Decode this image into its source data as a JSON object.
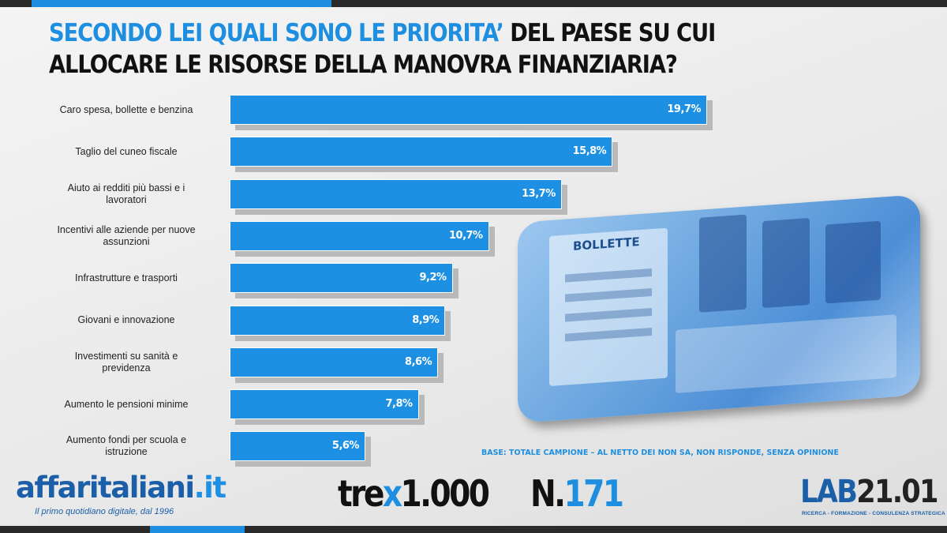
{
  "title": {
    "part_blue": "SECONDO LEI QUALI SONO LE PRIORITA’",
    "part_black": " DEL PAESE SU CUI ALLOCARE LE RISORSE DELLA MANOVRA FINANZIARIA?"
  },
  "chart_data": {
    "type": "bar",
    "orientation": "horizontal",
    "categories": [
      "Caro spesa, bollette e benzina",
      "Taglio del cuneo fiscale",
      "Aiuto ai redditi più bassi e i lavoratori",
      "Incentivi alle aziende per nuove assunzioni",
      "Infrastrutture e trasporti",
      "Giovani e innovazione",
      "Investimenti su sanità e previdenza",
      "Aumento le pensioni minime",
      "Aumento fondi per scuola e istruzione"
    ],
    "category_lines": [
      [
        "Caro spesa, bollette e benzina"
      ],
      [
        "Taglio del cuneo fiscale"
      ],
      [
        "Aiuto ai redditi più bassi e i",
        "lavoratori"
      ],
      [
        "Incentivi alle aziende per nuove",
        "assunzioni"
      ],
      [
        "Infrastrutture e trasporti"
      ],
      [
        "Giovani e innovazione"
      ],
      [
        "Investimenti  su sanità e",
        "previdenza"
      ],
      [
        "Aumento le pensioni minime"
      ],
      [
        "Aumento fondi per scuola e",
        "istruzione"
      ]
    ],
    "values": [
      19.7,
      15.8,
      13.7,
      10.7,
      9.2,
      8.9,
      8.6,
      7.8,
      5.6
    ],
    "value_labels": [
      "19,7%",
      "15,8%",
      "13,7%",
      "10,7%",
      "9,2%",
      "8,9%",
      "8,6%",
      "7,8%",
      "5,6%"
    ],
    "bar_color": "#1e90e4",
    "xlim": [
      0,
      20
    ]
  },
  "base_note": "BASE: TOTALE CAMPIONE – AL NETTO DEI NON SA, NON RISPONDE, SENZA OPINIONE",
  "photo": {
    "sign_text": "BOLLETTE"
  },
  "logos": {
    "affaritaliani_main": "affaritaliani",
    "affaritaliani_tld": ".it",
    "affaritaliani_tagline": "Il primo quotidiano digitale, dal 1996",
    "trex_pre": "tre",
    "trex_x": "x",
    "trex_post": "1.000",
    "issue_prefix": "N.",
    "issue_number": "171",
    "lab_blue": "LAB",
    "lab_dark": "21.01",
    "lab_tagline": "RICERCA - FORMAZIONE - CONSULENZA STRATEGICA"
  }
}
